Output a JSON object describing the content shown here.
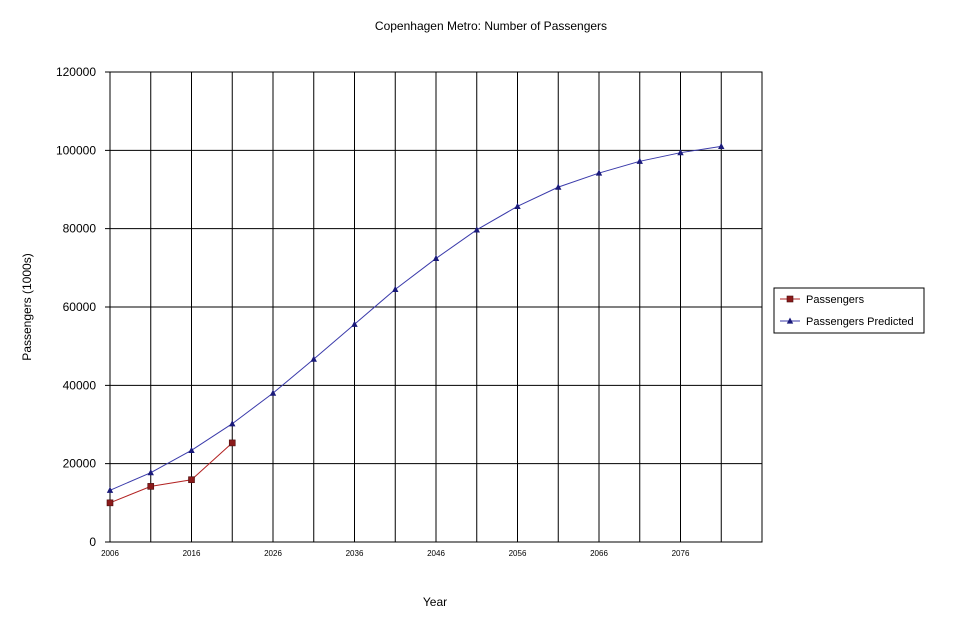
{
  "chart_data": {
    "type": "line",
    "title": "Copenhagen Metro: Number of Passengers",
    "xlabel": "Year",
    "ylabel": "Passengers (1000s)",
    "xlim": [
      2006,
      2086
    ],
    "ylim": [
      0,
      120000
    ],
    "x_ticks": [
      2006,
      2016,
      2026,
      2036,
      2046,
      2056,
      2066,
      2076
    ],
    "y_ticks": [
      0,
      20000,
      40000,
      60000,
      80000,
      100000,
      120000
    ],
    "grid": true,
    "legend_position": "right",
    "series": [
      {
        "name": "Passengers",
        "color": "#b22222",
        "marker_color": "#8b1a1a",
        "marker": "square",
        "points": [
          {
            "x": 2006,
            "y": 10000
          },
          {
            "x": 2011,
            "y": 14200
          },
          {
            "x": 2016,
            "y": 15900
          },
          {
            "x": 2021,
            "y": 25300
          }
        ]
      },
      {
        "name": "Passengers Predicted",
        "color": "#3a3aaa",
        "marker_color": "#1a1a7a",
        "marker": "triangle",
        "points": [
          {
            "x": 2006,
            "y": 13200
          },
          {
            "x": 2011,
            "y": 17700
          },
          {
            "x": 2016,
            "y": 23400
          },
          {
            "x": 2021,
            "y": 30200
          },
          {
            "x": 2026,
            "y": 38000
          },
          {
            "x": 2031,
            "y": 46700
          },
          {
            "x": 2036,
            "y": 55600
          },
          {
            "x": 2041,
            "y": 64500
          },
          {
            "x": 2046,
            "y": 72400
          },
          {
            "x": 2051,
            "y": 79700
          },
          {
            "x": 2056,
            "y": 85700
          },
          {
            "x": 2061,
            "y": 90600
          },
          {
            "x": 2066,
            "y": 94200
          },
          {
            "x": 2071,
            "y": 97200
          },
          {
            "x": 2076,
            "y": 99400
          },
          {
            "x": 2081,
            "y": 101000
          }
        ]
      }
    ]
  }
}
